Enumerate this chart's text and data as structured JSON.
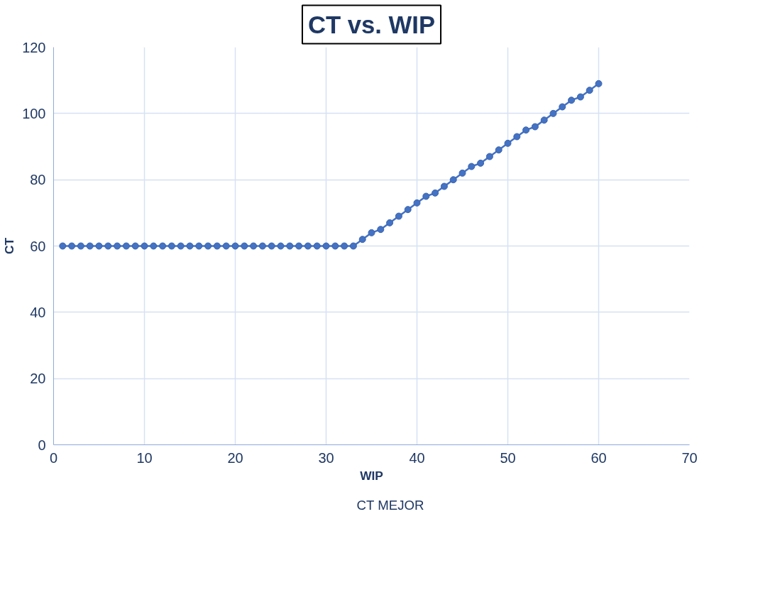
{
  "chart_data": {
    "type": "line",
    "title": "CT vs. WIP",
    "xlabel": "WIP",
    "ylabel": "CT",
    "x": [
      1,
      2,
      3,
      4,
      5,
      6,
      7,
      8,
      9,
      10,
      11,
      12,
      13,
      14,
      15,
      16,
      17,
      18,
      19,
      20,
      21,
      22,
      23,
      24,
      25,
      26,
      27,
      28,
      29,
      30,
      31,
      32,
      33,
      34,
      35,
      36,
      37,
      38,
      39,
      40,
      41,
      42,
      43,
      44,
      45,
      46,
      47,
      48,
      49,
      50,
      51,
      52,
      53,
      54,
      55,
      56,
      57,
      58,
      59,
      60
    ],
    "series": [
      {
        "name": "CT MEJOR",
        "color": "#4472c4",
        "values": [
          60,
          60,
          60,
          60,
          60,
          60,
          60,
          60,
          60,
          60,
          60,
          60,
          60,
          60,
          60,
          60,
          60,
          60,
          60,
          60,
          60,
          60,
          60,
          60,
          60,
          60,
          60,
          60,
          60,
          60,
          60,
          60,
          60,
          62,
          64,
          65,
          67,
          69,
          71,
          73,
          75,
          76,
          78,
          80,
          82,
          84,
          85,
          87,
          89,
          91,
          93,
          95,
          96,
          98,
          100,
          102,
          104,
          105,
          107,
          109
        ]
      }
    ],
    "xlim": [
      0,
      70
    ],
    "xticks": [
      0,
      10,
      20,
      30,
      40,
      50,
      60,
      70
    ],
    "ylim": [
      0,
      120
    ],
    "yticks": [
      0,
      20,
      40,
      60,
      80,
      100,
      120
    ],
    "grid": true,
    "legend": "bottom",
    "marker": "circle",
    "line_style": "solid"
  }
}
